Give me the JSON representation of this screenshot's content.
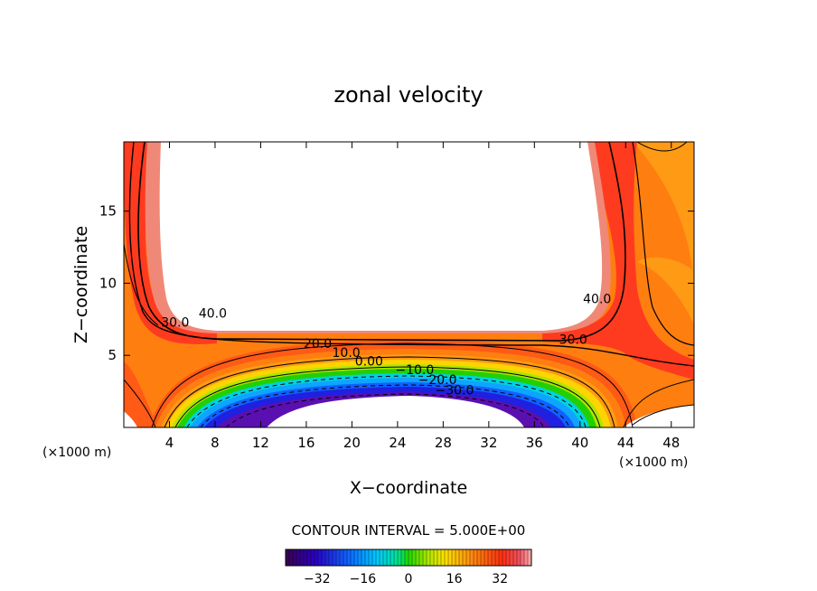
{
  "chart_data": {
    "type": "heatmap",
    "title": "zonal velocity",
    "xlabel": "X−coordinate",
    "ylabel": "Z−coordinate",
    "x_unit_left": "(×1000 m)",
    "x_unit_right": "(×1000 m)",
    "xlim": [
      0,
      50
    ],
    "ylim": [
      0,
      19.8
    ],
    "x_ticks": [
      4,
      8,
      12,
      16,
      20,
      24,
      28,
      32,
      36,
      40,
      44,
      48
    ],
    "y_ticks": [
      5,
      10,
      15
    ],
    "contour_interval_text": "CONTOUR INTERVAL = 5.000E+00",
    "contour_labels": [
      {
        "text": "40.0",
        "x": 7.8,
        "z": 7.6
      },
      {
        "text": "30.0",
        "x": 4.5,
        "z": 7.0
      },
      {
        "text": "40.0",
        "x": 41.5,
        "z": 8.6
      },
      {
        "text": "30.0",
        "x": 39.4,
        "z": 5.8
      },
      {
        "text": "20.0",
        "x": 17.0,
        "z": 5.5
      },
      {
        "text": "10.0",
        "x": 19.5,
        "z": 4.9
      },
      {
        "text": "0.00",
        "x": 21.5,
        "z": 4.3
      },
      {
        "text": "−10.0",
        "x": 25.5,
        "z": 3.7
      },
      {
        "text": "−20.0",
        "x": 27.5,
        "z": 3.0
      },
      {
        "text": "−30.0",
        "x": 29.0,
        "z": 2.3
      }
    ],
    "colorbar": {
      "range": [
        -43,
        43
      ],
      "ticks": [
        -32,
        -16,
        0,
        16,
        32
      ],
      "tick_labels": [
        "−32",
        "−16",
        "0",
        "16",
        "32"
      ]
    },
    "colors": {
      "dark_red": "#e61a12",
      "red": "#ff3b1f",
      "orange_red": "#ff5a16",
      "orange": "#ff7e10",
      "light_orange": "#ff9a14",
      "pink": "#f08878",
      "yellow": "#ffd400",
      "yellow_green": "#aee500",
      "green": "#22d000",
      "cyan": "#00d2e0",
      "light_blue": "#0ea4ff",
      "blue": "#1060ff",
      "dark_blue": "#2020e0",
      "purple": "#5a10b0"
    }
  }
}
